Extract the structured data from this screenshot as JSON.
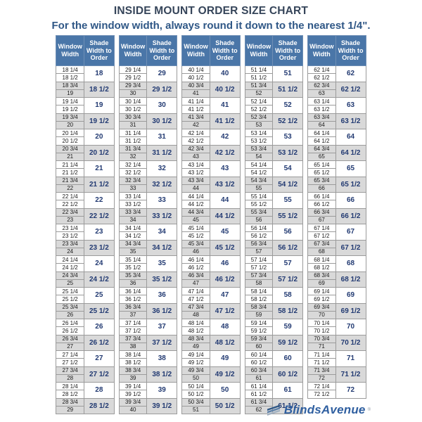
{
  "logo": {
    "text": "BlindsAvenue",
    "mark": "®"
  },
  "colors": {
    "header_bg": "#4a76a8",
    "header_text": "#ffffff",
    "alt_row_bg": "#d9d9d9",
    "shade_value_text": "#223a72",
    "title_text": "#36455a",
    "subtitle_text": "#2f5786",
    "brand_text": "#2f5fa0"
  },
  "chart_data": {
    "type": "table",
    "title": "INSIDE MOUNT ORDER SIZE CHART",
    "subtitle": "For the window width, always round it down to the nearest 1/4\".",
    "column_headers": [
      "Window Width",
      "Shade Width to Order"
    ],
    "layout_hint": "five side-by-side two-column tables; each shade value spans two window-width rows; groups alternate white and gray",
    "columns": [
      {
        "groups": [
          [
            "18 1/4",
            "18 1/2",
            "18"
          ],
          [
            "18 3/4",
            "19",
            "18 1/2"
          ],
          [
            "19 1/4",
            "19 1/2",
            "19"
          ],
          [
            "19 3/4",
            "20",
            "19 1/2"
          ],
          [
            "20 1/4",
            "20 1/2",
            "20"
          ],
          [
            "20 3/4",
            "21",
            "20 1/2"
          ],
          [
            "21 1/4",
            "21 1/2",
            "21"
          ],
          [
            "21 3/4",
            "22",
            "21 1/2"
          ],
          [
            "22 1/4",
            "22 1/2",
            "22"
          ],
          [
            "22 3/4",
            "23",
            "22 1/2"
          ],
          [
            "23 1/4",
            "23 1/2",
            "23"
          ],
          [
            "23 3/4",
            "24",
            "23 1/2"
          ],
          [
            "24 1/4",
            "24 1/2",
            "24"
          ],
          [
            "24 3/4",
            "25",
            "24 1/2"
          ],
          [
            "25 1/4",
            "25 1/2",
            "25"
          ],
          [
            "25 3/4",
            "26",
            "25 1/2"
          ],
          [
            "26 1/4",
            "26 1/2",
            "26"
          ],
          [
            "26 3/4",
            "27",
            "26 1/2"
          ],
          [
            "27 1/4",
            "27 1/2",
            "27"
          ],
          [
            "27 3/4",
            "28",
            "27 1/2"
          ],
          [
            "28 1/4",
            "28 1/2",
            "28"
          ],
          [
            "28 3/4",
            "29",
            "28 1/2"
          ]
        ]
      },
      {
        "groups": [
          [
            "29 1/4",
            "29 1/2",
            "29"
          ],
          [
            "29 3/4",
            "30",
            "29 1/2"
          ],
          [
            "30 1/4",
            "30 1/2",
            "30"
          ],
          [
            "30 3/4",
            "31",
            "30 1/2"
          ],
          [
            "31 1/4",
            "31 1/2",
            "31"
          ],
          [
            "31 3/4",
            "32",
            "31 1/2"
          ],
          [
            "32 1/4",
            "32 1/2",
            "32"
          ],
          [
            "32 3/4",
            "33",
            "32 1/2"
          ],
          [
            "33 1/4",
            "33 1/2",
            "33"
          ],
          [
            "33 3/4",
            "34",
            "33 1/2"
          ],
          [
            "34 1/4",
            "34 1/2",
            "34"
          ],
          [
            "34 3/4",
            "35",
            "34 1/2"
          ],
          [
            "35 1/4",
            "35 1/2",
            "35"
          ],
          [
            "35 3/4",
            "36",
            "35 1/2"
          ],
          [
            "36 1/4",
            "36 1/2",
            "36"
          ],
          [
            "36 3/4",
            "37",
            "36 1/2"
          ],
          [
            "37 1/4",
            "37 1/2",
            "37"
          ],
          [
            "37 3/4",
            "38",
            "37 1/2"
          ],
          [
            "38 1/4",
            "38 1/2",
            "38"
          ],
          [
            "38 3/4",
            "39",
            "38 1/2"
          ],
          [
            "39 1/4",
            "39 1/2",
            "39"
          ],
          [
            "39 3/4",
            "40",
            "39 1/2"
          ]
        ]
      },
      {
        "groups": [
          [
            "40 1/4",
            "40 1/2",
            "40"
          ],
          [
            "40 3/4",
            "41",
            "40 1/2"
          ],
          [
            "41 1/4",
            "41 1/2",
            "41"
          ],
          [
            "41 3/4",
            "42",
            "41 1/2"
          ],
          [
            "42 1/4",
            "42 1/2",
            "42"
          ],
          [
            "42 3/4",
            "43",
            "42 1/2"
          ],
          [
            "43 1/4",
            "43 1/2",
            "43"
          ],
          [
            "43 3/4",
            "44",
            "43 1/2"
          ],
          [
            "44 1/4",
            "44 1/2",
            "44"
          ],
          [
            "44 3/4",
            "45",
            "44 1/2"
          ],
          [
            "45 1/4",
            "45 1/2",
            "45"
          ],
          [
            "45 3/4",
            "46",
            "45 1/2"
          ],
          [
            "46 1/4",
            "46 1/2",
            "46"
          ],
          [
            "46 3/4",
            "47",
            "46 1/2"
          ],
          [
            "47 1/4",
            "47 1/2",
            "47"
          ],
          [
            "47 3/4",
            "48",
            "47 1/2"
          ],
          [
            "48 1/4",
            "48 1/2",
            "48"
          ],
          [
            "48 3/4",
            "49",
            "48 1/2"
          ],
          [
            "49 1/4",
            "49 1/2",
            "49"
          ],
          [
            "49 3/4",
            "50",
            "49 1/2"
          ],
          [
            "50 1/4",
            "50 1/2",
            "50"
          ],
          [
            "50 3/4",
            "51",
            "50 1/2"
          ]
        ]
      },
      {
        "groups": [
          [
            "51 1/4",
            "51 1/2",
            "51"
          ],
          [
            "51 3/4",
            "52",
            "51 1/2"
          ],
          [
            "52 1/4",
            "52 1/2",
            "52"
          ],
          [
            "52 3/4",
            "53",
            "52 1/2"
          ],
          [
            "53 1/4",
            "53 1/2",
            "53"
          ],
          [
            "53 3/4",
            "54",
            "53 1/2"
          ],
          [
            "54 1/4",
            "54 1/2",
            "54"
          ],
          [
            "54 3/4",
            "55",
            "54 1/2"
          ],
          [
            "55 1/4",
            "55 1/2",
            "55"
          ],
          [
            "55 3/4",
            "56",
            "55 1/2"
          ],
          [
            "56 1/4",
            "56 1/2",
            "56"
          ],
          [
            "56 3/4",
            "57",
            "56 1/2"
          ],
          [
            "57 1/4",
            "57 1/2",
            "57"
          ],
          [
            "57 3/4",
            "58",
            "57 1/2"
          ],
          [
            "58 1/4",
            "58 1/2",
            "58"
          ],
          [
            "58 3/4",
            "59",
            "58 1/2"
          ],
          [
            "59 1/4",
            "59 1/2",
            "59"
          ],
          [
            "59 3/4",
            "60",
            "59 1/2"
          ],
          [
            "60 1/4",
            "60 1/2",
            "60"
          ],
          [
            "60 3/4",
            "61",
            "60 1/2"
          ],
          [
            "61 1/4",
            "61 1/2",
            "61"
          ],
          [
            "61 3/4",
            "62",
            "61 1/2"
          ]
        ]
      },
      {
        "groups": [
          [
            "62 1/4",
            "62 1/2",
            "62"
          ],
          [
            "62 3/4",
            "63",
            "62 1/2"
          ],
          [
            "63 1/4",
            "63 1/2",
            "63"
          ],
          [
            "63 3/4",
            "64",
            "63 1/2"
          ],
          [
            "64 1/4",
            "64 1/2",
            "64"
          ],
          [
            "64 3/4",
            "65",
            "64 1/2"
          ],
          [
            "65 1/4",
            "65 1/2",
            "65"
          ],
          [
            "65 3/4",
            "66",
            "65 1/2"
          ],
          [
            "66 1/4",
            "66 1/2",
            "66"
          ],
          [
            "66 3/4",
            "67",
            "66 1/2"
          ],
          [
            "67 1/4",
            "67 1/2",
            "67"
          ],
          [
            "67 3/4",
            "68",
            "67 1/2"
          ],
          [
            "68 1/4",
            "68 1/2",
            "68"
          ],
          [
            "68 3/4",
            "69",
            "68 1/2"
          ],
          [
            "69 1/4",
            "69 1/2",
            "69"
          ],
          [
            "69 3/4",
            "70",
            "69 1/2"
          ],
          [
            "70 1/4",
            "70 1/2",
            "70"
          ],
          [
            "70 3/4",
            "71",
            "70 1/2"
          ],
          [
            "71 1/4",
            "71 1/2",
            "71"
          ],
          [
            "71 3/4",
            "72",
            "71 1/2"
          ],
          [
            "72 1/4",
            "72 1/2",
            "72"
          ]
        ]
      }
    ]
  }
}
